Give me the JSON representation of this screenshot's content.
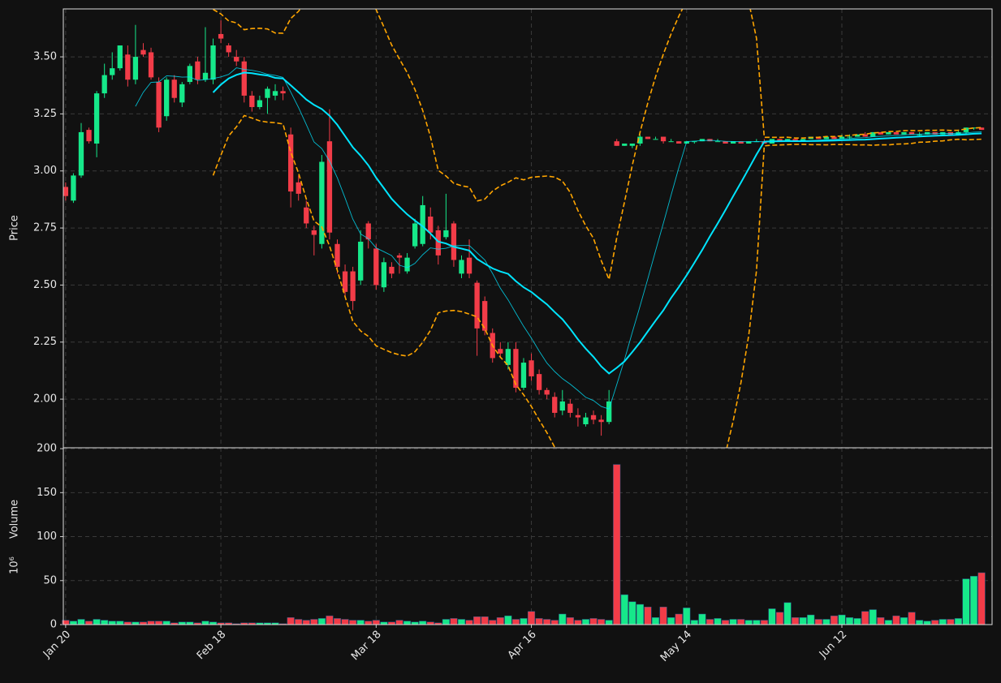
{
  "chart_data": {
    "type": "candlestick",
    "ylabel": "Price",
    "categories": [
      "Jan 20",
      null,
      null,
      null,
      null,
      null,
      null,
      null,
      null,
      null,
      null,
      null,
      null,
      null,
      null,
      null,
      null,
      null,
      null,
      null,
      "Feb 18",
      null,
      null,
      null,
      null,
      null,
      null,
      null,
      null,
      null,
      null,
      null,
      null,
      null,
      null,
      null,
      null,
      null,
      null,
      null,
      "Mar 18",
      null,
      null,
      null,
      null,
      null,
      null,
      null,
      null,
      null,
      null,
      null,
      null,
      null,
      null,
      null,
      null,
      null,
      null,
      null,
      "Apr 16",
      null,
      null,
      null,
      null,
      null,
      null,
      null,
      null,
      null,
      null,
      null,
      null,
      null,
      null,
      null,
      null,
      null,
      null,
      null,
      "May 14",
      null,
      null,
      null,
      null,
      null,
      null,
      null,
      null,
      null,
      null,
      null,
      null,
      null,
      null,
      null,
      null,
      null,
      null,
      null,
      "Jun 12",
      null,
      null,
      null,
      null,
      null,
      null,
      null,
      null,
      null,
      null,
      null,
      null,
      null,
      null,
      null,
      null,
      null,
      null
    ],
    "open": [
      2.93,
      2.87,
      2.98,
      3.18,
      3.12,
      3.34,
      3.42,
      3.45,
      3.51,
      3.4,
      3.53,
      3.52,
      3.39,
      3.24,
      3.4,
      3.3,
      3.39,
      3.48,
      3.4,
      3.4,
      3.6,
      3.55,
      3.5,
      3.48,
      3.33,
      3.28,
      3.32,
      3.33,
      3.35,
      3.16,
      2.95,
      2.84,
      2.74,
      2.68,
      3.13,
      2.68,
      2.56,
      2.56,
      2.52,
      2.77,
      2.66,
      2.49,
      2.58,
      2.63,
      2.56,
      2.67,
      2.68,
      2.8,
      2.74,
      2.71,
      2.77,
      2.55,
      2.62,
      2.51,
      2.43,
      2.29,
      2.22,
      2.15,
      2.22,
      2.05,
      2.17,
      2.11,
      2.04,
      2.01,
      1.95,
      1.98,
      1.93,
      1.89,
      1.93,
      1.91,
      1.9,
      3.13,
      3.11,
      3.11,
      3.12,
      3.15,
      3.14,
      3.15,
      3.13,
      3.13,
      3.12,
      3.13,
      3.13,
      3.14,
      3.13,
      3.13,
      3.12,
      3.13,
      3.12,
      3.13,
      3.13,
      3.12,
      3.14,
      3.13,
      3.14,
      3.13,
      3.14,
      3.15,
      3.14,
      3.15,
      3.14,
      3.15,
      3.15,
      3.16,
      3.15,
      3.17,
      3.16,
      3.17,
      3.16,
      3.17,
      3.16,
      3.16,
      3.17,
      3.16,
      3.17,
      3.16,
      3.17,
      3.19,
      3.19
    ],
    "high": [
      2.95,
      2.99,
      3.21,
      3.19,
      3.35,
      3.47,
      3.52,
      3.55,
      3.55,
      3.64,
      3.56,
      3.54,
      3.41,
      3.41,
      3.42,
      3.39,
      3.47,
      3.5,
      3.63,
      3.58,
      3.66,
      3.56,
      3.53,
      3.5,
      3.35,
      3.33,
      3.37,
      3.38,
      3.37,
      3.19,
      2.98,
      2.87,
      2.76,
      3.07,
      3.27,
      2.7,
      2.59,
      2.58,
      2.74,
      2.78,
      2.68,
      2.62,
      2.6,
      2.64,
      2.64,
      2.79,
      2.89,
      2.84,
      2.76,
      2.9,
      2.78,
      2.63,
      2.7,
      2.52,
      2.45,
      2.31,
      2.25,
      2.25,
      2.25,
      2.18,
      2.2,
      2.13,
      2.05,
      2.03,
      2.04,
      2.0,
      1.96,
      1.94,
      1.95,
      1.93,
      2.04,
      3.14,
      3.12,
      3.12,
      3.16,
      3.15,
      3.15,
      3.15,
      3.14,
      3.13,
      3.13,
      3.13,
      3.14,
      3.14,
      3.14,
      3.13,
      3.13,
      3.13,
      3.13,
      3.14,
      3.14,
      3.14,
      3.14,
      3.14,
      3.14,
      3.14,
      3.15,
      3.15,
      3.15,
      3.15,
      3.16,
      3.16,
      3.16,
      3.17,
      3.17,
      3.17,
      3.17,
      3.17,
      3.17,
      3.17,
      3.17,
      3.17,
      3.17,
      3.17,
      3.17,
      3.18,
      3.19,
      3.19,
      3.19
    ],
    "low": [
      2.87,
      2.86,
      2.97,
      3.12,
      3.06,
      3.32,
      3.4,
      3.44,
      3.37,
      3.38,
      3.5,
      3.4,
      3.17,
      3.22,
      3.3,
      3.28,
      3.38,
      3.38,
      3.39,
      3.38,
      3.56,
      3.5,
      3.46,
      3.3,
      3.26,
      3.27,
      3.25,
      3.31,
      3.31,
      2.84,
      2.87,
      2.75,
      2.63,
      2.66,
      2.7,
      2.55,
      2.45,
      2.39,
      2.5,
      2.66,
      2.48,
      2.47,
      2.53,
      2.55,
      2.55,
      2.66,
      2.67,
      2.7,
      2.59,
      2.7,
      2.58,
      2.53,
      2.53,
      2.19,
      2.28,
      2.16,
      2.18,
      2.13,
      2.03,
      2.04,
      2.08,
      2.02,
      2.0,
      1.92,
      1.93,
      1.92,
      1.88,
      1.88,
      1.89,
      1.84,
      1.89,
      3.11,
      3.11,
      3.1,
      3.11,
      3.14,
      3.14,
      3.12,
      3.13,
      3.12,
      3.12,
      3.12,
      3.13,
      3.13,
      3.13,
      3.12,
      3.12,
      3.12,
      3.12,
      3.13,
      3.12,
      3.12,
      3.13,
      3.13,
      3.13,
      3.13,
      3.14,
      3.14,
      3.14,
      3.14,
      3.14,
      3.14,
      3.15,
      3.15,
      3.15,
      3.16,
      3.16,
      3.16,
      3.16,
      3.16,
      3.15,
      3.16,
      3.16,
      3.16,
      3.16,
      3.16,
      3.16,
      3.18,
      3.18
    ],
    "close": [
      2.89,
      2.98,
      3.17,
      3.13,
      3.34,
      3.42,
      3.45,
      3.55,
      3.4,
      3.5,
      3.51,
      3.41,
      3.19,
      3.4,
      3.32,
      3.38,
      3.46,
      3.4,
      3.43,
      3.55,
      3.58,
      3.52,
      3.48,
      3.33,
      3.28,
      3.31,
      3.36,
      3.35,
      3.34,
      2.91,
      2.9,
      2.77,
      2.72,
      3.04,
      2.73,
      2.58,
      2.47,
      2.43,
      2.69,
      2.7,
      2.5,
      2.6,
      2.55,
      2.62,
      2.62,
      2.77,
      2.85,
      2.73,
      2.63,
      2.74,
      2.61,
      2.61,
      2.55,
      2.31,
      2.3,
      2.18,
      2.2,
      2.22,
      2.05,
      2.16,
      2.1,
      2.04,
      2.02,
      1.94,
      1.99,
      1.94,
      1.92,
      1.92,
      1.91,
      1.9,
      1.99,
      3.11,
      3.12,
      3.12,
      3.15,
      3.14,
      3.14,
      3.13,
      3.13,
      3.12,
      3.13,
      3.13,
      3.14,
      3.13,
      3.13,
      3.12,
      3.13,
      3.12,
      3.13,
      3.13,
      3.12,
      3.14,
      3.13,
      3.14,
      3.13,
      3.14,
      3.15,
      3.14,
      3.15,
      3.14,
      3.15,
      3.15,
      3.16,
      3.15,
      3.17,
      3.16,
      3.17,
      3.16,
      3.17,
      3.16,
      3.16,
      3.17,
      3.16,
      3.17,
      3.16,
      3.17,
      3.19,
      3.19,
      3.18
    ],
    "ylim": [
      1.787,
      3.71
    ],
    "yticks": [
      {
        "value": 2.0,
        "label": "2.00"
      },
      {
        "value": 2.25,
        "label": "2.25"
      },
      {
        "value": 2.5,
        "label": "2.50"
      },
      {
        "value": 2.75,
        "label": "2.75"
      },
      {
        "value": 3.0,
        "label": "3.00"
      },
      {
        "value": 3.25,
        "label": "3.25"
      },
      {
        "value": 3.5,
        "label": "3.50"
      }
    ],
    "volume": {
      "ylabel": "Volume",
      "unit": "10⁶",
      "values": [
        5,
        4,
        6,
        4,
        6,
        5,
        4,
        4,
        3,
        3,
        3,
        4,
        4,
        4,
        2,
        3,
        3,
        2,
        4,
        3,
        2,
        2,
        1,
        2,
        2,
        2,
        2,
        2,
        1,
        8,
        6,
        5,
        6,
        7,
        10,
        7,
        6,
        5,
        5,
        4,
        5,
        3,
        3,
        5,
        4,
        3,
        4,
        3,
        2,
        6,
        7,
        6,
        5,
        9,
        9,
        5,
        8,
        10,
        6,
        7,
        15,
        7,
        6,
        5,
        12,
        8,
        5,
        6,
        7,
        6,
        5,
        182,
        34,
        26,
        23,
        20,
        8,
        20,
        8,
        12,
        19,
        5,
        12,
        6,
        7,
        5,
        6,
        6,
        5,
        5,
        5,
        18,
        14,
        25,
        8,
        8,
        11,
        6,
        6,
        10,
        11,
        8,
        7,
        15,
        17,
        8,
        5,
        10,
        8,
        14,
        5,
        4,
        5,
        6,
        6,
        7,
        52,
        55,
        59
      ],
      "ylim": [
        0,
        201
      ],
      "yticks": [
        0,
        50,
        100,
        150,
        200
      ]
    },
    "up_color": "#16e88a",
    "down_color": "#f23c48",
    "ma_color": "#00e5ff",
    "band_color": "#ffa500",
    "grid": true
  }
}
